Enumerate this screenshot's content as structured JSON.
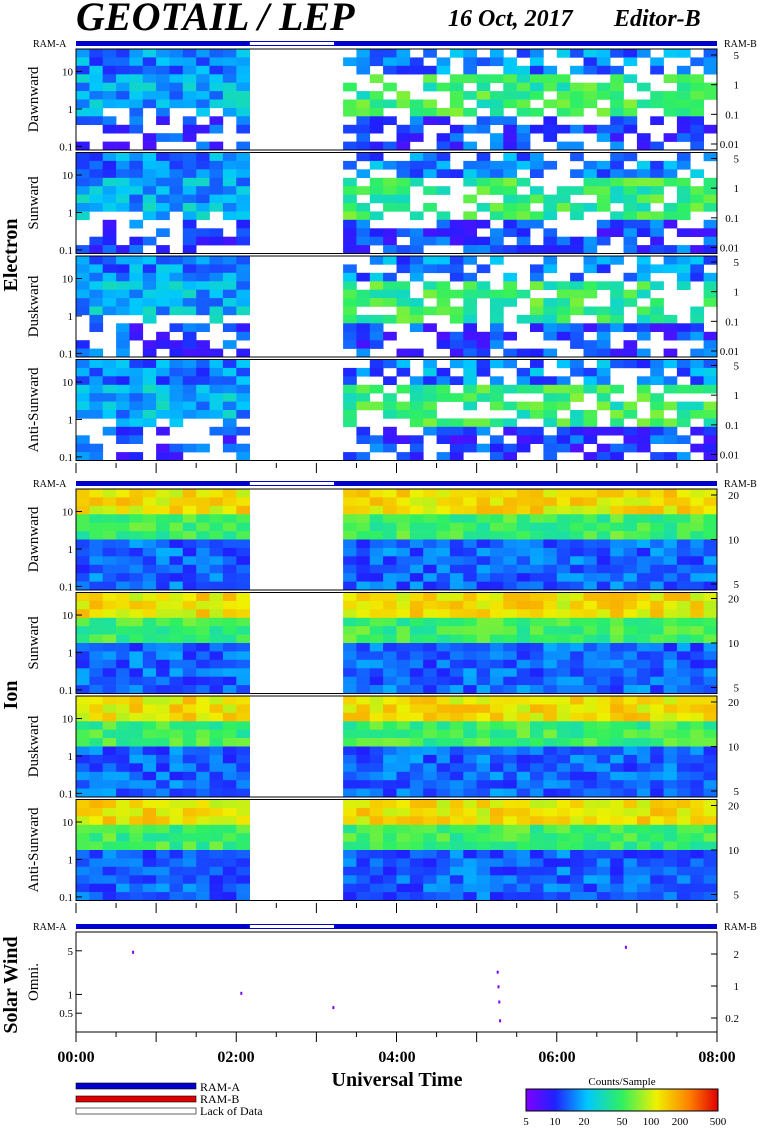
{
  "header": {
    "title": "GEOTAIL / LEP",
    "date": "16 Oct, 2017",
    "editor": "Editor-B"
  },
  "bar_labels": {
    "left": "RAM-A",
    "right": "RAM-B"
  },
  "groups": {
    "electron": "Electron",
    "ion": "Ion",
    "solar_wind": "Solar Wind"
  },
  "colors": {
    "ram_a": "#0000cc",
    "ram_b": "#dd0000",
    "lack": "#ffffff"
  },
  "chart_data": {
    "type": "heatmap",
    "xlabel": "Universal Time",
    "x_ticks": [
      "00:00",
      "02:00",
      "04:00",
      "06:00",
      "08:00"
    ],
    "x_range_hours": [
      0,
      8
    ],
    "data_gap_hours": [
      2.17,
      3.22
    ],
    "electron_panels": [
      {
        "label": "Dawnward",
        "left_ticks": [
          "10",
          "1",
          "0.1"
        ],
        "right_ticks": [
          "5",
          "1",
          "0.1",
          "0.01"
        ],
        "ylim": [
          0.08,
          40
        ],
        "log": true
      },
      {
        "label": "Sunward",
        "left_ticks": [
          "10",
          "1",
          "0.1"
        ],
        "right_ticks": [
          "5",
          "1",
          "0.1",
          "0.01"
        ],
        "ylim": [
          0.08,
          40
        ],
        "log": true
      },
      {
        "label": "Duskward",
        "left_ticks": [
          "10",
          "1",
          "0.1"
        ],
        "right_ticks": [
          "5",
          "1",
          "0.1",
          "0.01"
        ],
        "ylim": [
          0.08,
          40
        ],
        "log": true
      },
      {
        "label": "Anti-Sunward",
        "left_ticks": [
          "10",
          "1",
          "0.1"
        ],
        "right_ticks": [
          "5",
          "1",
          "0.1",
          "0.01"
        ],
        "ylim": [
          0.08,
          40
        ],
        "log": true
      }
    ],
    "ion_panels": [
      {
        "label": "Dawnward",
        "left_ticks": [
          "10",
          "1",
          "0.1"
        ],
        "right_ticks": [
          "20",
          "10",
          "5"
        ],
        "ylim": [
          0.08,
          40
        ],
        "log": true
      },
      {
        "label": "Sunward",
        "left_ticks": [
          "10",
          "1",
          "0.1"
        ],
        "right_ticks": [
          "20",
          "10",
          "5"
        ],
        "ylim": [
          0.08,
          40
        ],
        "log": true
      },
      {
        "label": "Duskward",
        "left_ticks": [
          "10",
          "1",
          "0.1"
        ],
        "right_ticks": [
          "20",
          "10",
          "5"
        ],
        "ylim": [
          0.08,
          40
        ],
        "log": true
      },
      {
        "label": "Anti-Sunward",
        "left_ticks": [
          "10",
          "1",
          "0.1"
        ],
        "right_ticks": [
          "20",
          "10",
          "5"
        ],
        "ylim": [
          0.08,
          40
        ],
        "log": true
      }
    ],
    "solar_wind_panel": {
      "label": "Omni.",
      "left_ticks": [
        "5",
        "1",
        "0.5"
      ],
      "right_ticks": [
        "2",
        "1",
        "0.2"
      ],
      "ylim": [
        0.25,
        10
      ],
      "log": true
    },
    "colorbar": {
      "title": "Counts/Sample",
      "ticks": [
        "5",
        "10",
        "20",
        "50",
        "100",
        "200",
        "500"
      ],
      "range": [
        5,
        500
      ],
      "log": true
    },
    "legend": [
      {
        "name": "RAM-A",
        "color": "#0000cc"
      },
      {
        "name": "RAM-B",
        "color": "#dd0000"
      },
      {
        "name": "Lack of Data",
        "color": "#ffffff"
      }
    ]
  }
}
